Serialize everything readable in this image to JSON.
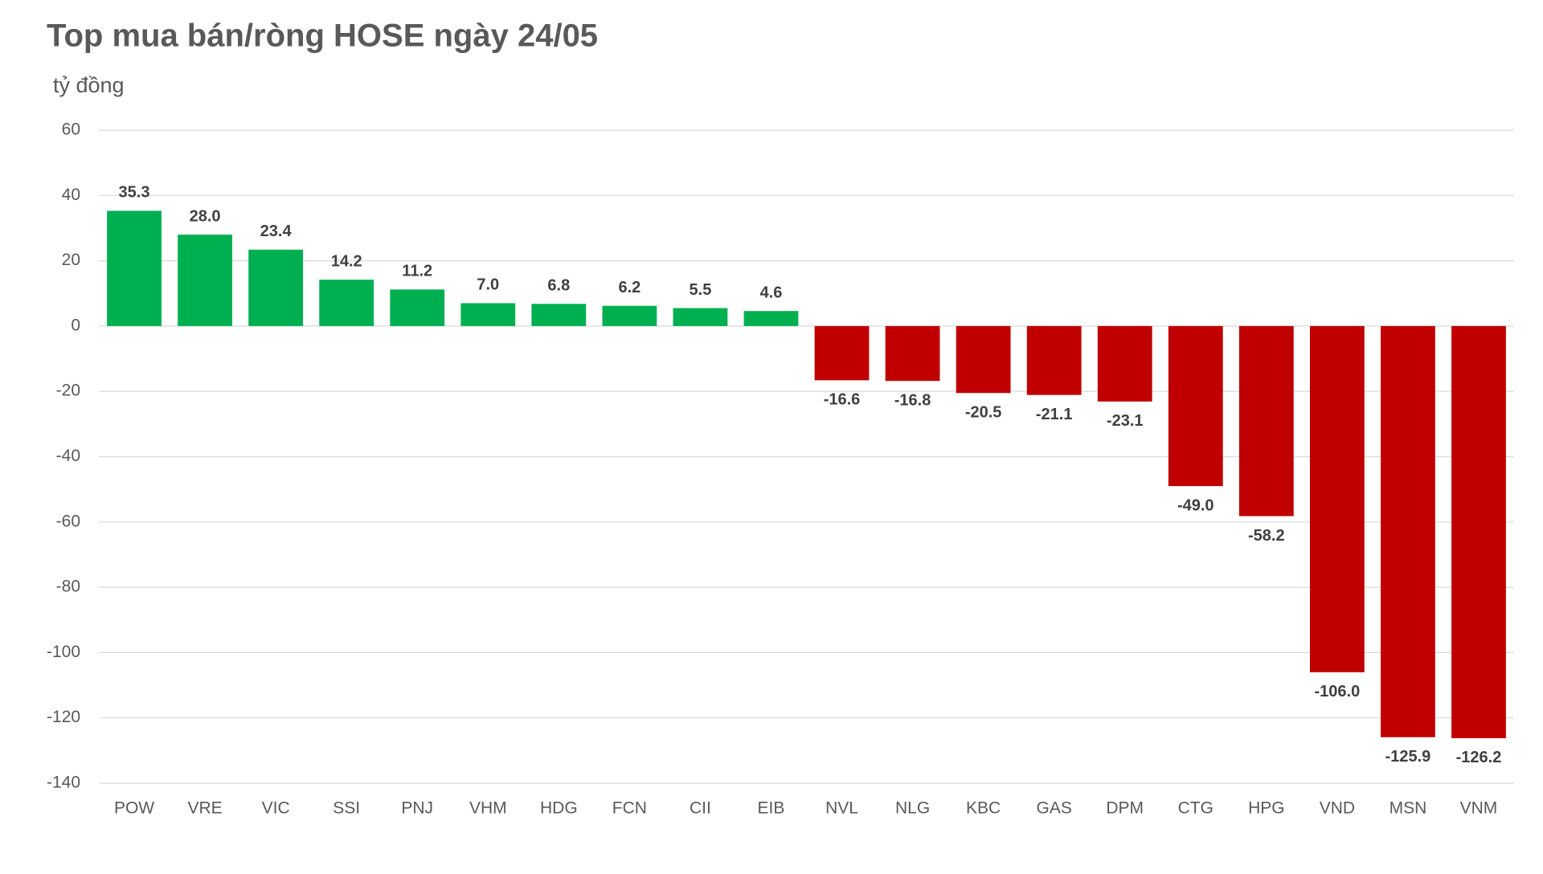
{
  "chart_data": {
    "type": "bar",
    "title": "Top mua bán/ròng HOSE ngày 24/05",
    "y_label": "tỷ đồng",
    "categories": [
      "POW",
      "VRE",
      "VIC",
      "SSI",
      "PNJ",
      "VHM",
      "HDG",
      "FCN",
      "CII",
      "EIB",
      "NVL",
      "NLG",
      "KBC",
      "GAS",
      "DPM",
      "CTG",
      "HPG",
      "VND",
      "MSN",
      "VNM"
    ],
    "values": [
      35.3,
      28.0,
      23.4,
      14.2,
      11.2,
      7.0,
      6.8,
      6.2,
      5.5,
      4.6,
      -16.6,
      -16.8,
      -20.5,
      -21.1,
      -23.1,
      -49.0,
      -58.2,
      -106.0,
      -125.9,
      -126.2
    ],
    "value_labels": [
      "35.3",
      "28.0",
      "23.4",
      "14.2",
      "11.2",
      "7.0",
      "6.8",
      "6.2",
      "5.5",
      "4.6",
      "-16.6",
      "-16.8",
      "-20.5",
      "-21.1",
      "-23.1",
      "-49.0",
      "-58.2",
      "-106.0",
      "-125.9",
      "-126.2"
    ],
    "colors": {
      "positive": "#00b050",
      "negative": "#c00000"
    },
    "ylim": [
      -140,
      60
    ],
    "yticks": [
      60,
      40,
      20,
      0,
      -20,
      -40,
      -60,
      -80,
      -100,
      -120,
      -140
    ],
    "grid": true
  }
}
